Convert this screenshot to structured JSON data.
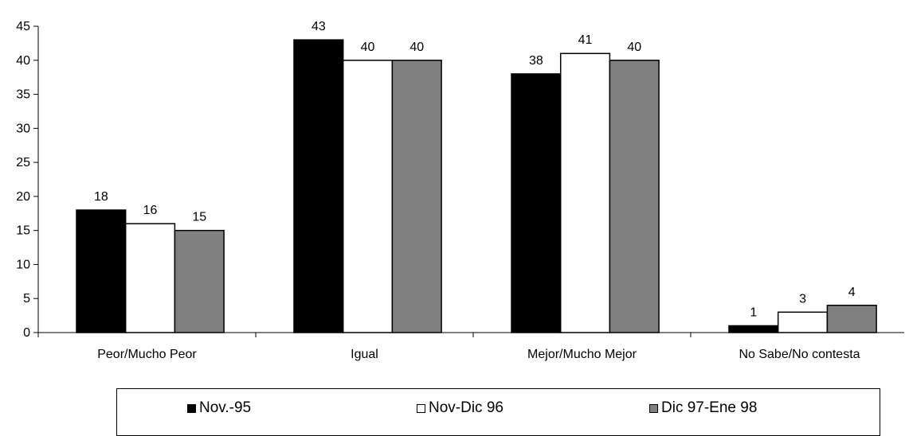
{
  "chart_data": {
    "type": "bar",
    "categories": [
      "Peor/Mucho Peor",
      "Igual",
      "Mejor/Mucho Mejor",
      "No Sabe/No contesta"
    ],
    "series": [
      {
        "name": "Nov.-95",
        "values": [
          18,
          43,
          38,
          1
        ],
        "color": "#000000"
      },
      {
        "name": "Nov-Dic 96",
        "values": [
          16,
          40,
          41,
          3
        ],
        "color": "#ffffff"
      },
      {
        "name": "Dic 97-Ene 98",
        "values": [
          15,
          40,
          40,
          4
        ],
        "color": "#808080"
      }
    ],
    "y_ticks": [
      "0",
      "5",
      "10",
      "15",
      "20",
      "25",
      "30",
      "35",
      "40",
      "45"
    ],
    "ylim": [
      0,
      45
    ],
    "title": "",
    "xlabel": "",
    "ylabel": "",
    "grid": false,
    "legend_position": "bottom"
  }
}
